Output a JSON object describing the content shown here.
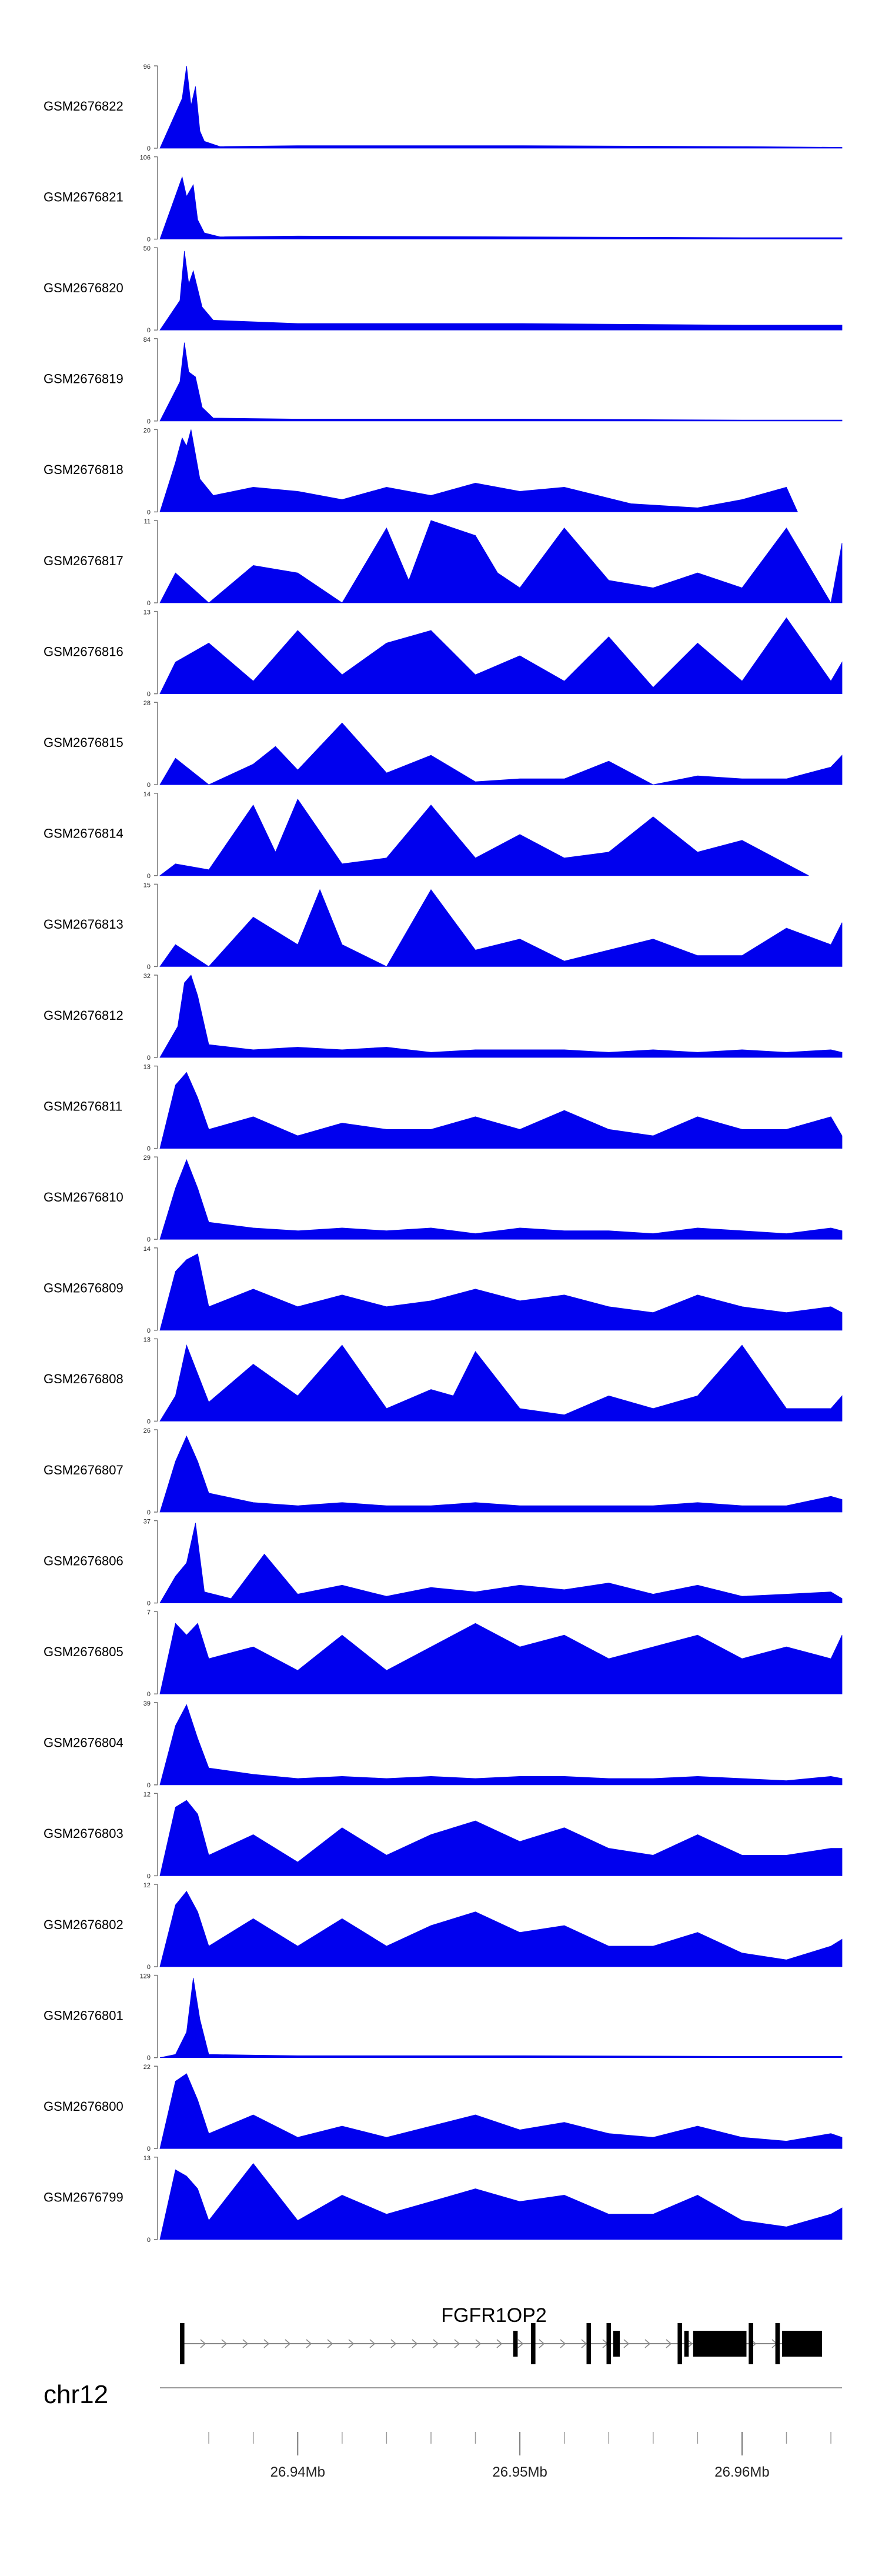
{
  "chart_data": {
    "type": "area",
    "title": "",
    "chromosome": "chr12",
    "x_unit": "Mb",
    "xlim": [
      26.9338,
      26.9645
    ],
    "x_ticks": [
      26.936,
      26.938,
      26.94,
      26.942,
      26.944,
      26.946,
      26.948,
      26.95,
      26.952,
      26.954,
      26.956,
      26.958,
      26.96,
      26.962,
      26.964
    ],
    "x_tick_labels": [
      {
        "value": 26.94,
        "label": "26.94Mb"
      },
      {
        "value": 26.95,
        "label": "26.95Mb"
      },
      {
        "value": 26.96,
        "label": "26.96Mb"
      }
    ],
    "fill_color": "#0000ee",
    "axis_color": "#777777",
    "tracks": [
      {
        "name": "GSM2676822",
        "ymax": 96,
        "x": [
          26.9338,
          26.9348,
          26.935,
          26.9352,
          26.9354,
          26.9356,
          26.9358,
          26.9365,
          26.94,
          26.95,
          26.96,
          26.9645
        ],
        "values": [
          0,
          58,
          96,
          50,
          72,
          20,
          8,
          2,
          3,
          3,
          2,
          1
        ]
      },
      {
        "name": "GSM2676821",
        "ymax": 106,
        "x": [
          26.9338,
          26.9348,
          26.935,
          26.9353,
          26.9355,
          26.9358,
          26.9365,
          26.94,
          26.95,
          26.96,
          26.9645
        ],
        "values": [
          0,
          80,
          55,
          70,
          25,
          8,
          3,
          4,
          3,
          2,
          2
        ]
      },
      {
        "name": "GSM2676820",
        "ymax": 50,
        "x": [
          26.9338,
          26.9347,
          26.9349,
          26.9351,
          26.9353,
          26.9357,
          26.9362,
          26.94,
          26.95,
          26.96,
          26.9645
        ],
        "values": [
          0,
          18,
          48,
          28,
          36,
          14,
          6,
          4,
          4,
          3,
          3
        ]
      },
      {
        "name": "GSM2676819",
        "ymax": 84,
        "x": [
          26.9338,
          26.9347,
          26.9349,
          26.9351,
          26.9354,
          26.9357,
          26.9362,
          26.94,
          26.95,
          26.96,
          26.9645
        ],
        "values": [
          0,
          40,
          80,
          50,
          45,
          14,
          3,
          2,
          2,
          1,
          1
        ]
      },
      {
        "name": "GSM2676818",
        "ymax": 20,
        "x": [
          26.9338,
          26.9345,
          26.9348,
          26.935,
          26.9352,
          26.9356,
          26.9362,
          26.938,
          26.94,
          26.942,
          26.944,
          26.946,
          26.948,
          26.95,
          26.952,
          26.955,
          26.958,
          26.96,
          26.962,
          26.9625
        ],
        "values": [
          0,
          12,
          18,
          16,
          20,
          8,
          4,
          6,
          5,
          3,
          6,
          4,
          7,
          5,
          6,
          2,
          1,
          3,
          6,
          0
        ]
      },
      {
        "name": "GSM2676817",
        "ymax": 11,
        "x": [
          26.9338,
          26.9345,
          26.936,
          26.938,
          26.94,
          26.942,
          26.944,
          26.945,
          26.946,
          26.947,
          26.948,
          26.949,
          26.95,
          26.952,
          26.954,
          26.956,
          26.958,
          26.96,
          26.962,
          26.964,
          26.9645
        ],
        "values": [
          0,
          4,
          0,
          5,
          4,
          0,
          10,
          3,
          11,
          10,
          9,
          4,
          2,
          10,
          3,
          2,
          4,
          2,
          10,
          0,
          8
        ]
      },
      {
        "name": "GSM2676816",
        "ymax": 13,
        "x": [
          26.9338,
          26.9345,
          26.936,
          26.938,
          26.94,
          26.942,
          26.944,
          26.946,
          26.948,
          26.95,
          26.952,
          26.954,
          26.956,
          26.958,
          26.96,
          26.962,
          26.964,
          26.9645
        ],
        "values": [
          0,
          5,
          8,
          2,
          10,
          3,
          8,
          10,
          3,
          6,
          2,
          9,
          1,
          8,
          2,
          12,
          2,
          5
        ]
      },
      {
        "name": "GSM2676815",
        "ymax": 28,
        "x": [
          26.9338,
          26.9345,
          26.936,
          26.938,
          26.939,
          26.94,
          26.942,
          26.944,
          26.946,
          26.948,
          26.95,
          26.952,
          26.954,
          26.956,
          26.958,
          26.96,
          26.962,
          26.964,
          26.9645
        ],
        "values": [
          0,
          9,
          0,
          7,
          13,
          5,
          21,
          4,
          10,
          1,
          2,
          2,
          8,
          0,
          3,
          2,
          2,
          6,
          10
        ]
      },
      {
        "name": "GSM2676814",
        "ymax": 14,
        "x": [
          26.9338,
          26.9345,
          26.936,
          26.938,
          26.939,
          26.94,
          26.942,
          26.944,
          26.946,
          26.948,
          26.95,
          26.952,
          26.954,
          26.956,
          26.958,
          26.96,
          26.962,
          26.963
        ],
        "values": [
          0,
          2,
          1,
          12,
          4,
          13,
          2,
          3,
          12,
          3,
          7,
          3,
          4,
          10,
          4,
          6,
          2,
          0
        ]
      },
      {
        "name": "GSM2676813",
        "ymax": 15,
        "x": [
          26.9338,
          26.9345,
          26.936,
          26.938,
          26.94,
          26.941,
          26.942,
          26.944,
          26.946,
          26.948,
          26.95,
          26.952,
          26.954,
          26.956,
          26.958,
          26.96,
          26.962,
          26.964,
          26.9645
        ],
        "values": [
          0,
          4,
          0,
          9,
          4,
          14,
          4,
          0,
          14,
          3,
          5,
          1,
          3,
          5,
          2,
          2,
          7,
          4,
          8
        ]
      },
      {
        "name": "GSM2676812",
        "ymax": 32,
        "x": [
          26.9338,
          26.9346,
          26.9349,
          26.9352,
          26.9355,
          26.936,
          26.938,
          26.94,
          26.942,
          26.944,
          26.946,
          26.948,
          26.95,
          26.952,
          26.954,
          26.956,
          26.958,
          26.96,
          26.962,
          26.964,
          26.9645
        ],
        "values": [
          0,
          12,
          29,
          32,
          24,
          5,
          3,
          4,
          3,
          4,
          2,
          3,
          3,
          3,
          2,
          3,
          2,
          3,
          2,
          3,
          2
        ]
      },
      {
        "name": "GSM2676811",
        "ymax": 13,
        "x": [
          26.9338,
          26.9345,
          26.935,
          26.9355,
          26.936,
          26.938,
          26.94,
          26.942,
          26.944,
          26.946,
          26.948,
          26.95,
          26.952,
          26.954,
          26.956,
          26.958,
          26.96,
          26.962,
          26.964,
          26.9645
        ],
        "values": [
          0,
          10,
          12,
          8,
          3,
          5,
          2,
          4,
          3,
          3,
          5,
          3,
          6,
          3,
          2,
          5,
          3,
          3,
          5,
          2
        ]
      },
      {
        "name": "GSM2676810",
        "ymax": 29,
        "x": [
          26.9338,
          26.9345,
          26.935,
          26.9355,
          26.936,
          26.938,
          26.94,
          26.942,
          26.944,
          26.946,
          26.948,
          26.95,
          26.952,
          26.954,
          26.956,
          26.958,
          26.96,
          26.962,
          26.964,
          26.9645
        ],
        "values": [
          0,
          18,
          28,
          18,
          6,
          4,
          3,
          4,
          3,
          4,
          2,
          4,
          3,
          3,
          2,
          4,
          3,
          2,
          4,
          3
        ]
      },
      {
        "name": "GSM2676809",
        "ymax": 14,
        "x": [
          26.9338,
          26.9345,
          26.935,
          26.9355,
          26.936,
          26.938,
          26.94,
          26.942,
          26.944,
          26.946,
          26.948,
          26.95,
          26.952,
          26.954,
          26.956,
          26.958,
          26.96,
          26.962,
          26.964,
          26.9645
        ],
        "values": [
          0,
          10,
          12,
          13,
          4,
          7,
          4,
          6,
          4,
          5,
          7,
          5,
          6,
          4,
          3,
          6,
          4,
          3,
          4,
          3
        ]
      },
      {
        "name": "GSM2676808",
        "ymax": 13,
        "x": [
          26.9338,
          26.9345,
          26.935,
          26.936,
          26.938,
          26.94,
          26.942,
          26.944,
          26.946,
          26.947,
          26.948,
          26.95,
          26.952,
          26.954,
          26.956,
          26.958,
          26.96,
          26.962,
          26.964,
          26.9645
        ],
        "values": [
          0,
          4,
          12,
          3,
          9,
          4,
          12,
          2,
          5,
          4,
          11,
          2,
          1,
          4,
          2,
          4,
          12,
          2,
          2,
          4
        ]
      },
      {
        "name": "GSM2676807",
        "ymax": 26,
        "x": [
          26.9338,
          26.9345,
          26.935,
          26.9355,
          26.936,
          26.938,
          26.94,
          26.942,
          26.944,
          26.946,
          26.948,
          26.95,
          26.952,
          26.954,
          26.956,
          26.958,
          26.96,
          26.962,
          26.964,
          26.9645
        ],
        "values": [
          0,
          16,
          24,
          16,
          6,
          3,
          2,
          3,
          2,
          2,
          3,
          2,
          2,
          2,
          2,
          3,
          2,
          2,
          5,
          4
        ]
      },
      {
        "name": "GSM2676806",
        "ymax": 37,
        "x": [
          26.9338,
          26.9345,
          26.935,
          26.9354,
          26.9358,
          26.937,
          26.9385,
          26.94,
          26.942,
          26.944,
          26.946,
          26.948,
          26.95,
          26.952,
          26.954,
          26.956,
          26.958,
          26.96,
          26.962,
          26.964,
          26.9645
        ],
        "values": [
          0,
          12,
          18,
          36,
          5,
          2,
          22,
          4,
          8,
          3,
          7,
          5,
          8,
          6,
          9,
          4,
          8,
          3,
          4,
          5,
          2
        ]
      },
      {
        "name": "GSM2676805",
        "ymax": 7,
        "x": [
          26.9338,
          26.9345,
          26.935,
          26.9355,
          26.936,
          26.938,
          26.94,
          26.942,
          26.944,
          26.946,
          26.948,
          26.95,
          26.952,
          26.954,
          26.956,
          26.958,
          26.96,
          26.962,
          26.964,
          26.9645
        ],
        "values": [
          0,
          6,
          5,
          6,
          3,
          4,
          2,
          5,
          2,
          4,
          6,
          4,
          5,
          3,
          4,
          5,
          3,
          4,
          3,
          5
        ]
      },
      {
        "name": "GSM2676804",
        "ymax": 39,
        "x": [
          26.9338,
          26.9345,
          26.935,
          26.9355,
          26.936,
          26.938,
          26.94,
          26.942,
          26.944,
          26.946,
          26.948,
          26.95,
          26.952,
          26.954,
          26.956,
          26.958,
          26.96,
          26.962,
          26.964,
          26.9645
        ],
        "values": [
          0,
          28,
          38,
          22,
          8,
          5,
          3,
          4,
          3,
          4,
          3,
          4,
          4,
          3,
          3,
          4,
          3,
          2,
          4,
          3
        ]
      },
      {
        "name": "GSM2676803",
        "ymax": 12,
        "x": [
          26.9338,
          26.9345,
          26.935,
          26.9355,
          26.936,
          26.938,
          26.94,
          26.942,
          26.944,
          26.946,
          26.948,
          26.95,
          26.952,
          26.954,
          26.956,
          26.958,
          26.96,
          26.962,
          26.964,
          26.9645
        ],
        "values": [
          0,
          10,
          11,
          9,
          3,
          6,
          2,
          7,
          3,
          6,
          8,
          5,
          7,
          4,
          3,
          6,
          3,
          3,
          4,
          4
        ]
      },
      {
        "name": "GSM2676802",
        "ymax": 12,
        "x": [
          26.9338,
          26.9345,
          26.935,
          26.9355,
          26.936,
          26.938,
          26.94,
          26.942,
          26.944,
          26.946,
          26.948,
          26.95,
          26.952,
          26.954,
          26.956,
          26.958,
          26.96,
          26.962,
          26.964,
          26.9645
        ],
        "values": [
          0,
          9,
          11,
          8,
          3,
          7,
          3,
          7,
          3,
          6,
          8,
          5,
          6,
          3,
          3,
          5,
          2,
          1,
          3,
          4
        ]
      },
      {
        "name": "GSM2676801",
        "ymax": 129,
        "x": [
          26.9338,
          26.9345,
          26.935,
          26.9353,
          26.9356,
          26.936,
          26.938,
          26.94,
          26.95,
          26.96,
          26.9645
        ],
        "values": [
          0,
          5,
          40,
          125,
          60,
          5,
          4,
          3,
          3,
          2,
          2
        ]
      },
      {
        "name": "GSM2676800",
        "ymax": 22,
        "x": [
          26.9338,
          26.9345,
          26.935,
          26.9355,
          26.936,
          26.938,
          26.94,
          26.942,
          26.944,
          26.946,
          26.948,
          26.95,
          26.952,
          26.954,
          26.956,
          26.958,
          26.96,
          26.962,
          26.964,
          26.9645
        ],
        "values": [
          0,
          18,
          20,
          13,
          4,
          9,
          3,
          6,
          3,
          6,
          9,
          5,
          7,
          4,
          3,
          6,
          3,
          2,
          4,
          3
        ]
      },
      {
        "name": "GSM2676799",
        "ymax": 13,
        "x": [
          26.9338,
          26.9345,
          26.935,
          26.9355,
          26.936,
          26.938,
          26.94,
          26.942,
          26.944,
          26.946,
          26.948,
          26.95,
          26.952,
          26.954,
          26.956,
          26.958,
          26.96,
          26.962,
          26.964,
          26.9645
        ],
        "values": [
          0,
          11,
          10,
          8,
          3,
          12,
          3,
          7,
          4,
          6,
          8,
          6,
          7,
          4,
          4,
          7,
          3,
          2,
          4,
          5
        ]
      }
    ],
    "gene": {
      "name": "FGFR1OP2",
      "strand": "+",
      "start": 26.9347,
      "end": 26.9636,
      "exons": [
        {
          "start": 26.9347,
          "end": 26.9349,
          "thick": true
        },
        {
          "start": 26.9497,
          "end": 26.9499,
          "thick": false
        },
        {
          "start": 26.9505,
          "end": 26.9507,
          "thick": true
        },
        {
          "start": 26.953,
          "end": 26.9532,
          "thick": true
        },
        {
          "start": 26.9539,
          "end": 26.9541,
          "thick": true
        },
        {
          "start": 26.9542,
          "end": 26.9545,
          "thick": false
        },
        {
          "start": 26.9571,
          "end": 26.9573,
          "thick": true
        },
        {
          "start": 26.9574,
          "end": 26.9576,
          "thick": false
        },
        {
          "start": 26.9578,
          "end": 26.9602,
          "thick": false
        },
        {
          "start": 26.9603,
          "end": 26.9605,
          "thick": true
        },
        {
          "start": 26.9615,
          "end": 26.9617,
          "thick": true
        },
        {
          "start": 26.9618,
          "end": 26.9636,
          "thick": false
        }
      ]
    }
  }
}
